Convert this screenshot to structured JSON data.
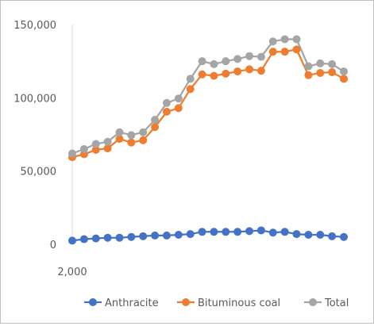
{
  "chart_data": {
    "type": "line",
    "title": "",
    "xlabel": "",
    "ylabel": "",
    "ylim": [
      0,
      150000
    ],
    "yticks": [
      {
        "value": 0,
        "label": "0"
      },
      {
        "value": 50000,
        "label": "50,000"
      },
      {
        "value": 100000,
        "label": "100,000"
      },
      {
        "value": 150000,
        "label": "150,000"
      }
    ],
    "x": [
      2000,
      2001,
      2002,
      2003,
      2004,
      2005,
      2006,
      2007,
      2008,
      2009,
      2010,
      2011,
      2012,
      2013,
      2014,
      2015,
      2016,
      2017,
      2018,
      2019,
      2020,
      2021,
      2022,
      2023
    ],
    "xtick_labels": [
      "2,000"
    ],
    "grid": false,
    "legend_position": "bottom",
    "series": [
      {
        "name": "Anthracite",
        "color": "#4472c4",
        "values": [
          2500,
          3500,
          4000,
          4500,
          4500,
          5000,
          5500,
          6000,
          6000,
          6500,
          7000,
          8500,
          8500,
          8500,
          8500,
          9000,
          9500,
          8000,
          8500,
          7000,
          6500,
          6500,
          5500,
          5000
        ]
      },
      {
        "name": "Bituminous coal",
        "color": "#ed7d31",
        "values": [
          59500,
          61500,
          64500,
          65500,
          72000,
          69500,
          71000,
          80000,
          90500,
          93000,
          106000,
          116000,
          115000,
          116500,
          118000,
          119500,
          118500,
          131500,
          131500,
          133000,
          115500,
          117000,
          117500,
          113000
        ]
      },
      {
        "name": "Total",
        "color": "#a5a5a5",
        "values": [
          62000,
          65000,
          68500,
          70000,
          76500,
          74500,
          76500,
          85000,
          96500,
          99500,
          113000,
          125000,
          123000,
          125000,
          126500,
          128500,
          128000,
          138500,
          140000,
          140000,
          121500,
          123500,
          123000,
          118000
        ]
      }
    ]
  }
}
